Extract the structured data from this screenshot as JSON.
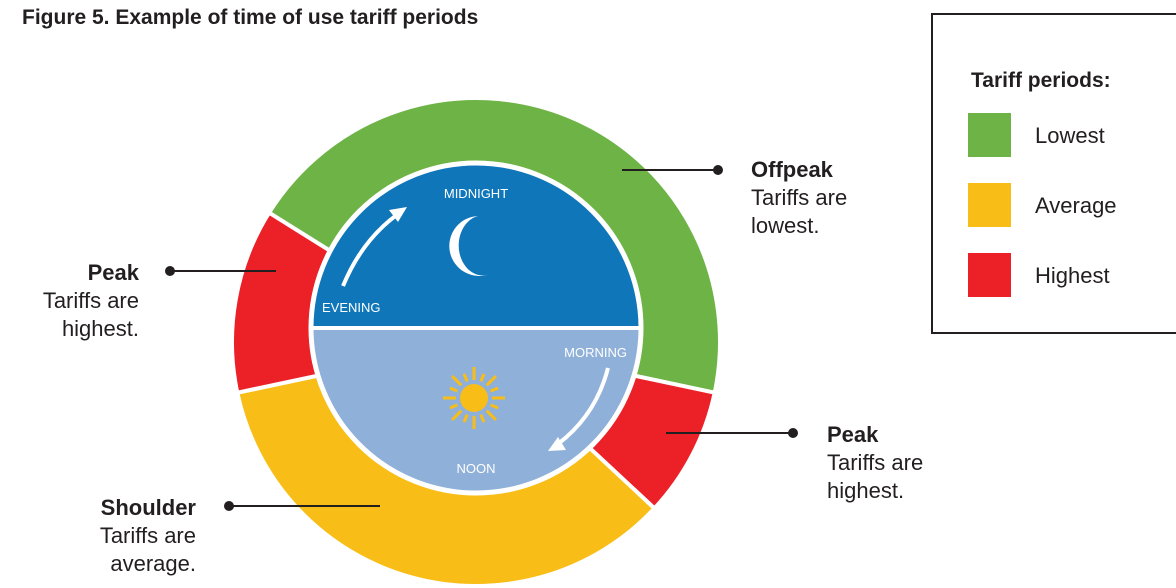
{
  "title": "Figure 5. Example of time of use tariff periods",
  "legend": {
    "title": "Tariff periods:",
    "items": [
      "Lowest",
      "Average",
      "Highest"
    ]
  },
  "clock": {
    "top": "MIDNIGHT",
    "left": "EVENING",
    "right": "MORNING",
    "bottom": "NOON"
  },
  "callouts": [
    {
      "label": "Offpeak",
      "text": "Tariffs are lowest."
    },
    {
      "label": "Peak",
      "text": "Tariffs are highest."
    },
    {
      "label": "Peak",
      "text": "Tariffs are highest."
    },
    {
      "label": "Shoulder",
      "text": "Tariffs are average."
    }
  ]
}
